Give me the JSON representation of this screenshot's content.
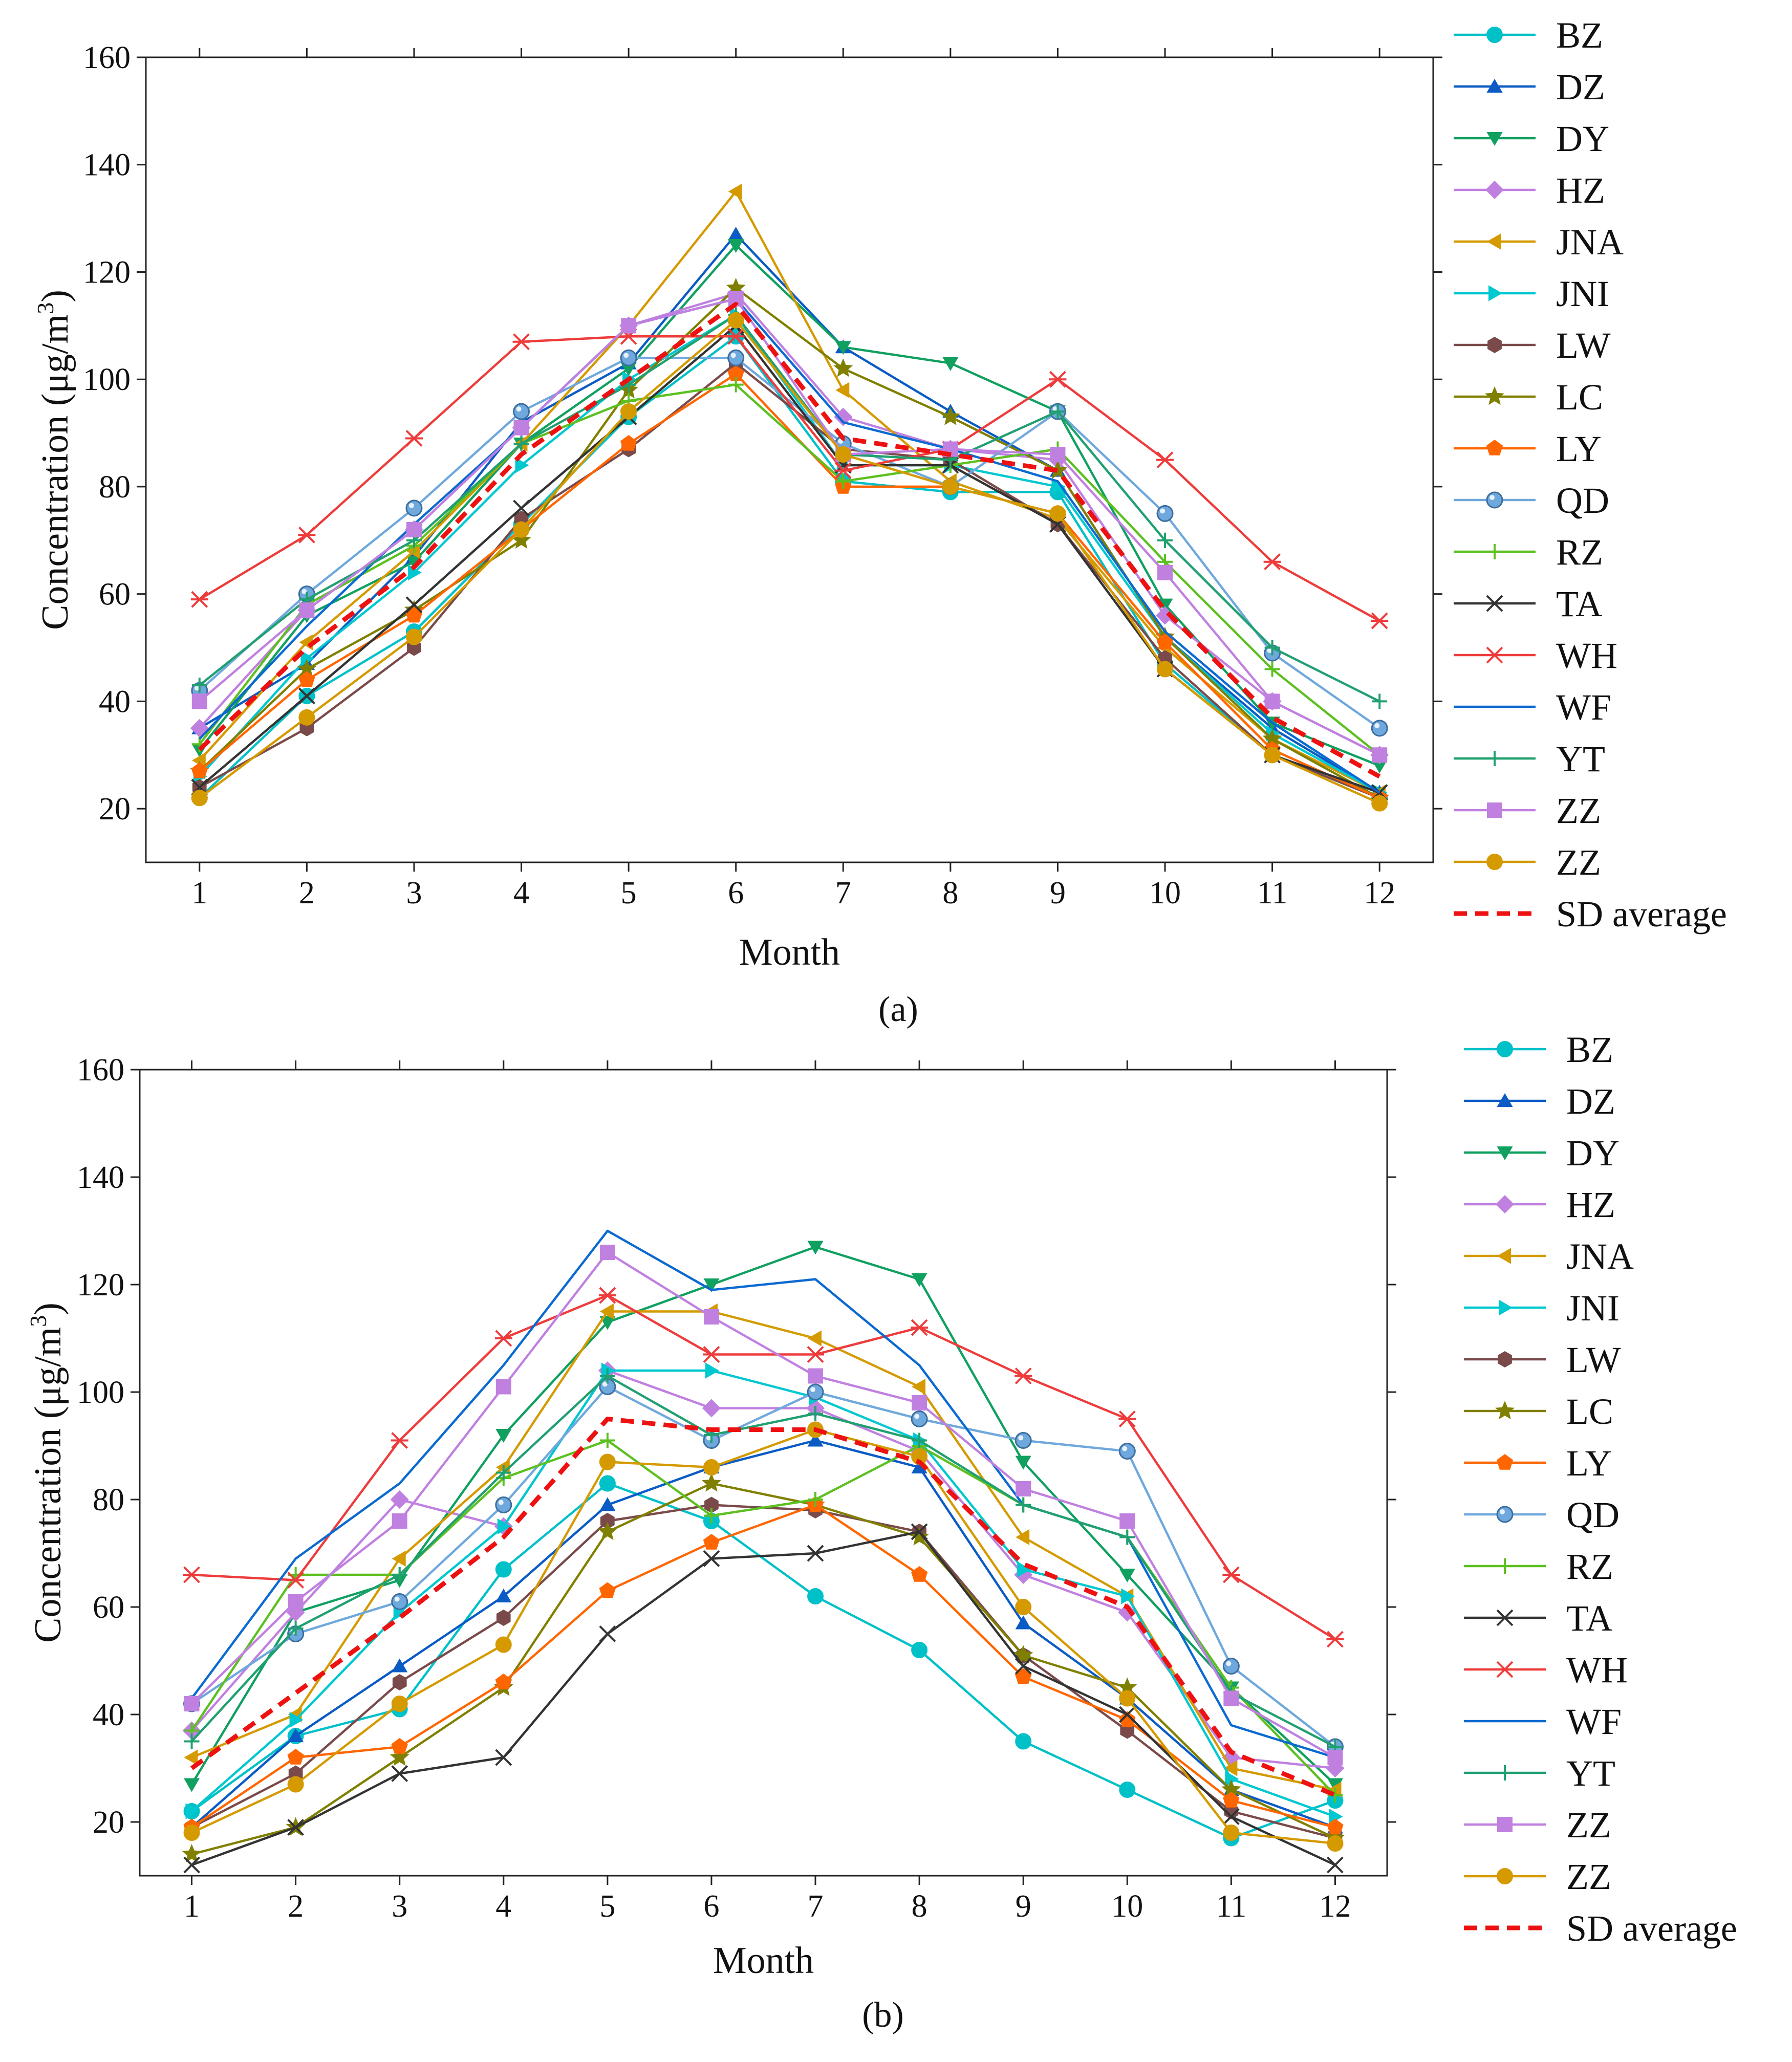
{
  "chart_data": [
    {
      "type": "line",
      "panel_label": "(a)",
      "xlabel": "Month",
      "ylabel": "Concentration (μg/m³)",
      "ylabel_text": "Concentration (μg/m",
      "ylabel_sup": "3",
      "ylabel_close": ")",
      "xlim": [
        0.5,
        12.5
      ],
      "ylim": [
        10,
        160
      ],
      "xticks": [
        1,
        2,
        3,
        4,
        5,
        6,
        7,
        8,
        9,
        10,
        11,
        12
      ],
      "yticks": [
        20,
        40,
        60,
        80,
        100,
        120,
        140,
        160
      ],
      "legend_position": "right",
      "series": [
        {
          "name": "BZ",
          "color": "#00c0c8",
          "marker": "circle",
          "values": [
            22,
            41,
            53,
            73,
            93,
            108,
            81,
            79,
            79,
            47,
            30,
            22
          ]
        },
        {
          "name": "DZ",
          "color": "#0a5bc4",
          "marker": "triangle-up",
          "values": [
            35,
            47,
            67,
            92,
            103,
            127,
            106,
            94,
            83,
            52,
            35,
            23
          ]
        },
        {
          "name": "DY",
          "color": "#10a060",
          "marker": "triangle-down",
          "values": [
            31,
            56,
            66,
            88,
            102,
            125,
            106,
            103,
            94,
            58,
            36,
            28
          ]
        },
        {
          "name": "HZ",
          "color": "#c080e0",
          "marker": "diamond",
          "values": [
            35,
            57,
            72,
            91,
            110,
            116,
            93,
            87,
            85,
            56,
            40,
            30
          ]
        },
        {
          "name": "JNA",
          "color": "#d49a00",
          "marker": "triangle-left",
          "values": [
            29,
            51,
            68,
            88,
            110,
            135,
            98,
            81,
            74,
            50,
            33,
            23
          ]
        },
        {
          "name": "JNI",
          "color": "#00c8d0",
          "marker": "triangle-right",
          "values": [
            26,
            48,
            64,
            84,
            100,
            112,
            84,
            84,
            80,
            52,
            34,
            23
          ]
        },
        {
          "name": "LW",
          "color": "#7a4a4a",
          "marker": "hexagon",
          "values": [
            24,
            35,
            50,
            74,
            87,
            103,
            87,
            85,
            73,
            48,
            30,
            22
          ]
        },
        {
          "name": "LC",
          "color": "#808000",
          "marker": "star",
          "values": [
            27,
            46,
            57,
            70,
            98,
            117,
            102,
            93,
            83,
            52,
            33,
            22
          ]
        },
        {
          "name": "LY",
          "color": "#ff6600",
          "marker": "pentagon",
          "values": [
            27,
            44,
            56,
            72,
            88,
            101,
            80,
            80,
            75,
            51,
            31,
            22
          ]
        },
        {
          "name": "QD",
          "color": "#6fa8dc",
          "marker": "sphere",
          "values": [
            42,
            60,
            76,
            94,
            104,
            104,
            88,
            80,
            94,
            75,
            49,
            35
          ]
        },
        {
          "name": "RZ",
          "color": "#5cc020",
          "marker": "plus",
          "values": [
            32,
            58,
            69,
            88,
            96,
            99,
            81,
            84,
            87,
            66,
            46,
            30
          ]
        },
        {
          "name": "TA",
          "color": "#333333",
          "marker": "x",
          "values": [
            24,
            41,
            58,
            76,
            93,
            110,
            84,
            84,
            73,
            46,
            30,
            23
          ]
        },
        {
          "name": "WH",
          "color": "#ee3b3b",
          "marker": "asterisk",
          "values": [
            59,
            71,
            89,
            107,
            108,
            108,
            83,
            87,
            100,
            85,
            66,
            55
          ]
        },
        {
          "name": "WF",
          "color": "#0a6ad0",
          "marker": "none",
          "values": [
            33,
            54,
            73,
            91,
            110,
            115,
            92,
            87,
            81,
            53,
            36,
            23
          ]
        },
        {
          "name": "YT",
          "color": "#20a070",
          "marker": "plus",
          "values": [
            43,
            59,
            70,
            88,
            99,
            112,
            86,
            85,
            94,
            70,
            50,
            40
          ]
        },
        {
          "name": "ZZ",
          "color": "#c080e0",
          "marker": "square",
          "values": [
            40,
            57,
            72,
            91,
            110,
            115,
            86,
            87,
            86,
            64,
            40,
            30
          ]
        },
        {
          "name": "ZZ",
          "color": "#d49a00",
          "marker": "circle",
          "values": [
            22,
            37,
            52,
            72,
            94,
            111,
            86,
            80,
            75,
            46,
            30,
            21
          ]
        },
        {
          "name": "SD average",
          "color": "#ee1111",
          "marker": "none",
          "dashed": true,
          "values": [
            31,
            50,
            65,
            86,
            100,
            114,
            89,
            86,
            83,
            57,
            37,
            26
          ]
        }
      ]
    },
    {
      "type": "line",
      "panel_label": "(b)",
      "xlabel": "Month",
      "ylabel": "Concentration (μg/m³)",
      "ylabel_text": "Concentration (μg/m",
      "ylabel_sup": "3",
      "ylabel_close": ")",
      "xlim": [
        0.5,
        12.5
      ],
      "ylim": [
        10,
        160
      ],
      "xticks": [
        1,
        2,
        3,
        4,
        5,
        6,
        7,
        8,
        9,
        10,
        11,
        12
      ],
      "yticks": [
        20,
        40,
        60,
        80,
        100,
        120,
        140,
        160
      ],
      "legend_position": "right",
      "series": [
        {
          "name": "BZ",
          "color": "#00c0c8",
          "marker": "circle",
          "values": [
            22,
            36,
            41,
            67,
            83,
            76,
            62,
            52,
            35,
            26,
            17,
            24
          ]
        },
        {
          "name": "DZ",
          "color": "#0a5bc4",
          "marker": "triangle-up",
          "values": [
            19,
            36,
            49,
            62,
            79,
            86,
            91,
            86,
            57,
            43,
            26,
            19
          ]
        },
        {
          "name": "DY",
          "color": "#10a060",
          "marker": "triangle-down",
          "values": [
            27,
            59,
            65,
            92,
            113,
            120,
            127,
            121,
            87,
            66,
            45,
            27
          ]
        },
        {
          "name": "HZ",
          "color": "#c080e0",
          "marker": "diamond",
          "values": [
            37,
            59,
            80,
            75,
            104,
            97,
            97,
            89,
            66,
            59,
            32,
            30
          ]
        },
        {
          "name": "JNA",
          "color": "#d49a00",
          "marker": "triangle-left",
          "values": [
            32,
            40,
            69,
            86,
            115,
            115,
            110,
            101,
            73,
            62,
            30,
            26
          ]
        },
        {
          "name": "JNI",
          "color": "#00c8d0",
          "marker": "triangle-right",
          "values": [
            22,
            39,
            59,
            75,
            104,
            104,
            99,
            91,
            67,
            62,
            28,
            21
          ]
        },
        {
          "name": "LW",
          "color": "#7a4a4a",
          "marker": "hexagon",
          "values": [
            19,
            29,
            46,
            58,
            76,
            79,
            78,
            74,
            51,
            37,
            22,
            17
          ]
        },
        {
          "name": "LC",
          "color": "#808000",
          "marker": "star",
          "values": [
            14,
            19,
            32,
            45,
            74,
            83,
            79,
            73,
            51,
            45,
            26,
            17
          ]
        },
        {
          "name": "LY",
          "color": "#ff6600",
          "marker": "pentagon",
          "values": [
            19,
            32,
            34,
            46,
            63,
            72,
            79,
            66,
            47,
            39,
            24,
            19
          ]
        },
        {
          "name": "QD",
          "color": "#6fa8dc",
          "marker": "sphere",
          "values": [
            42,
            55,
            61,
            79,
            101,
            91,
            100,
            95,
            91,
            89,
            49,
            34
          ]
        },
        {
          "name": "RZ",
          "color": "#5cc020",
          "marker": "plus",
          "values": [
            37,
            66,
            66,
            84,
            91,
            77,
            80,
            90,
            79,
            73,
            45,
            25
          ]
        },
        {
          "name": "TA",
          "color": "#333333",
          "marker": "x",
          "values": [
            12,
            19,
            29,
            32,
            55,
            69,
            70,
            74,
            49,
            40,
            21,
            12
          ]
        },
        {
          "name": "WH",
          "color": "#ee3b3b",
          "marker": "asterisk",
          "values": [
            66,
            65,
            91,
            110,
            118,
            107,
            107,
            112,
            103,
            95,
            66,
            54
          ]
        },
        {
          "name": "WF",
          "color": "#0a6ad0",
          "marker": "none",
          "values": [
            43,
            69,
            83,
            105,
            130,
            119,
            121,
            105,
            79,
            73,
            38,
            32
          ]
        },
        {
          "name": "YT",
          "color": "#20a070",
          "marker": "plus",
          "values": [
            35,
            56,
            66,
            85,
            103,
            92,
            96,
            91,
            79,
            73,
            44,
            34
          ]
        },
        {
          "name": "ZZ",
          "color": "#c080e0",
          "marker": "square",
          "values": [
            42,
            61,
            76,
            101,
            126,
            114,
            103,
            98,
            82,
            76,
            43,
            32
          ]
        },
        {
          "name": "ZZ",
          "color": "#d49a00",
          "marker": "circle",
          "values": [
            18,
            27,
            42,
            53,
            87,
            86,
            93,
            88,
            60,
            43,
            18,
            16
          ]
        },
        {
          "name": "SD average",
          "color": "#ee1111",
          "marker": "none",
          "dashed": true,
          "values": [
            30,
            44,
            58,
            73,
            95,
            93,
            93,
            87,
            68,
            60,
            33,
            25
          ]
        }
      ]
    }
  ]
}
